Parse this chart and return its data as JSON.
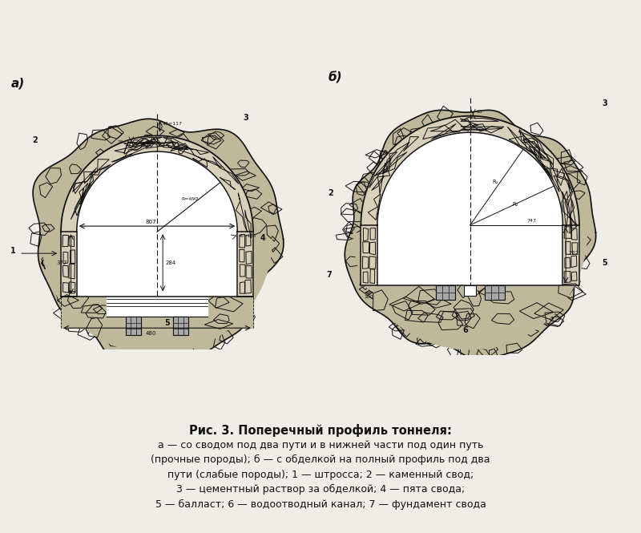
{
  "title": "Рис. 3. Поперечный профиль тоннеля:",
  "caption_lines": [
    "а — со сводом под два пути и в нижней части под один путь",
    "(прочные породы); б — с обделкой на полный профиль под два",
    "пути (слабые породы); 1 — штросса; 2 — каменный свод;",
    "3 — цементный раствор за обделкой; 4 — пята свода;",
    "5 — балласт; 6 — водоотводный канал; 7 — фундамент свода"
  ],
  "bg_color": "#f0ede8",
  "line_color": "#111111",
  "stone_fill": "#d8d0b8",
  "rock_fill": "#c0b89a",
  "white": "#ffffff"
}
